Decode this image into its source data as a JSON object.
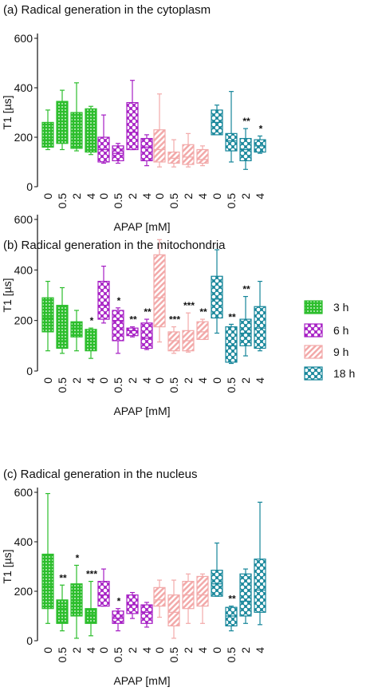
{
  "figure": {
    "legend": [
      {
        "label": "3 h",
        "color": "#2dbe2d",
        "pattern": "grid-dots"
      },
      {
        "label": "6 h",
        "color": "#a61fc4",
        "pattern": "crosshatch"
      },
      {
        "label": "9 h",
        "color": "#f2a9a9",
        "pattern": "diagonal"
      },
      {
        "label": "18 h",
        "color": "#16869a",
        "pattern": "crosshatch"
      }
    ]
  },
  "chart_data": [
    {
      "type": "box",
      "title": "(a) Radical generation in the cytoplasm",
      "ylabel": "T1 [µs]",
      "xlabel": "APAP [mM]",
      "ylim": [
        0,
        620
      ],
      "yticks": [
        0,
        200,
        400,
        600
      ],
      "x_ticks": [
        "0",
        "0.5",
        "2",
        "4"
      ],
      "groups": [
        {
          "name": "3 h",
          "boxes": [
            {
              "x": "0",
              "min": 150,
              "q1": 160,
              "median": 190,
              "q3": 260,
              "max": 310,
              "sig": ""
            },
            {
              "x": "0.5",
              "min": 150,
              "q1": 175,
              "median": 225,
              "q3": 345,
              "max": 390,
              "sig": ""
            },
            {
              "x": "2",
              "min": 145,
              "q1": 155,
              "median": 210,
              "q3": 300,
              "max": 420,
              "sig": ""
            },
            {
              "x": "4",
              "min": 130,
              "q1": 140,
              "median": 225,
              "q3": 315,
              "max": 325,
              "sig": ""
            }
          ]
        },
        {
          "name": "6 h",
          "boxes": [
            {
              "x": "0",
              "min": 95,
              "q1": 100,
              "median": 150,
              "q3": 200,
              "max": 290,
              "sig": ""
            },
            {
              "x": "0.5",
              "min": 95,
              "q1": 105,
              "median": 135,
              "q3": 165,
              "max": 175,
              "sig": ""
            },
            {
              "x": "2",
              "min": 150,
              "q1": 150,
              "median": 220,
              "q3": 340,
              "max": 430,
              "sig": ""
            },
            {
              "x": "4",
              "min": 85,
              "q1": 105,
              "median": 160,
              "q3": 195,
              "max": 210,
              "sig": ""
            }
          ]
        },
        {
          "name": "9 h",
          "boxes": [
            {
              "x": "0",
              "min": 80,
              "q1": 100,
              "median": 150,
              "q3": 230,
              "max": 375,
              "sig": ""
            },
            {
              "x": "0.5",
              "min": 80,
              "q1": 95,
              "median": 115,
              "q3": 140,
              "max": 190,
              "sig": ""
            },
            {
              "x": "2",
              "min": 80,
              "q1": 90,
              "median": 120,
              "q3": 170,
              "max": 215,
              "sig": ""
            },
            {
              "x": "4",
              "min": 85,
              "q1": 95,
              "median": 110,
              "q3": 150,
              "max": 165,
              "sig": ""
            }
          ]
        },
        {
          "name": "18 h",
          "boxes": [
            {
              "x": "0",
              "min": 210,
              "q1": 210,
              "median": 260,
              "q3": 310,
              "max": 330,
              "sig": ""
            },
            {
              "x": "0.5",
              "min": 100,
              "q1": 145,
              "median": 185,
              "q3": 215,
              "max": 385,
              "sig": ""
            },
            {
              "x": "2",
              "min": 70,
              "q1": 105,
              "median": 150,
              "q3": 195,
              "max": 235,
              "sig": "**"
            },
            {
              "x": "4",
              "min": 135,
              "q1": 140,
              "median": 165,
              "q3": 190,
              "max": 205,
              "sig": "*"
            }
          ]
        }
      ]
    },
    {
      "type": "box",
      "title": "(b) Radical generation in the mitochondria",
      "ylabel": "T1 [µs]",
      "xlabel": "APAP [mM]",
      "ylim": [
        0,
        620
      ],
      "yticks": [
        0,
        200,
        400,
        600
      ],
      "x_ticks": [
        "0",
        "0.5",
        "2",
        "4"
      ],
      "groups": [
        {
          "name": "3 h",
          "boxes": [
            {
              "x": "0",
              "min": 80,
              "q1": 155,
              "median": 210,
              "q3": 290,
              "max": 355,
              "sig": ""
            },
            {
              "x": "0.5",
              "min": 70,
              "q1": 90,
              "median": 120,
              "q3": 260,
              "max": 330,
              "sig": ""
            },
            {
              "x": "2",
              "min": 80,
              "q1": 135,
              "median": 170,
              "q3": 195,
              "max": 240,
              "sig": ""
            },
            {
              "x": "4",
              "min": 50,
              "q1": 80,
              "median": 105,
              "q3": 165,
              "max": 170,
              "sig": "*"
            }
          ]
        },
        {
          "name": "6 h",
          "boxes": [
            {
              "x": "0",
              "min": 190,
              "q1": 205,
              "median": 260,
              "q3": 355,
              "max": 415,
              "sig": ""
            },
            {
              "x": "0.5",
              "min": 70,
              "q1": 120,
              "median": 200,
              "q3": 240,
              "max": 250,
              "sig": "*"
            },
            {
              "x": "2",
              "min": 135,
              "q1": 140,
              "median": 160,
              "q3": 170,
              "max": 175,
              "sig": "**"
            },
            {
              "x": "4",
              "min": 85,
              "q1": 90,
              "median": 130,
              "q3": 190,
              "max": 205,
              "sig": "**"
            }
          ]
        },
        {
          "name": "9 h",
          "boxes": [
            {
              "x": "0",
              "min": 115,
              "q1": 175,
              "median": 290,
              "q3": 460,
              "max": 520,
              "sig": ""
            },
            {
              "x": "0.5",
              "min": 70,
              "q1": 80,
              "median": 120,
              "q3": 155,
              "max": 175,
              "sig": "***"
            },
            {
              "x": "2",
              "min": 75,
              "q1": 80,
              "median": 120,
              "q3": 160,
              "max": 230,
              "sig": "***"
            },
            {
              "x": "4",
              "min": 125,
              "q1": 125,
              "median": 155,
              "q3": 195,
              "max": 205,
              "sig": "**"
            }
          ]
        },
        {
          "name": "18 h",
          "boxes": [
            {
              "x": "0",
              "min": 150,
              "q1": 210,
              "median": 285,
              "q3": 375,
              "max": 480,
              "sig": ""
            },
            {
              "x": "0.5",
              "min": 30,
              "q1": 35,
              "median": 100,
              "q3": 175,
              "max": 185,
              "sig": "**"
            },
            {
              "x": "2",
              "min": 60,
              "q1": 100,
              "median": 150,
              "q3": 205,
              "max": 295,
              "sig": "**"
            },
            {
              "x": "4",
              "min": 80,
              "q1": 90,
              "median": 170,
              "q3": 255,
              "max": 355,
              "sig": ""
            }
          ]
        }
      ]
    },
    {
      "type": "box",
      "title": "(c) Radical generation in the nucleus",
      "ylabel": "T1 [µs]",
      "xlabel": "APAP [mM]",
      "ylim": [
        0,
        620
      ],
      "yticks": [
        0,
        200,
        400,
        600
      ],
      "x_ticks": [
        "0",
        "0.5",
        "2",
        "4"
      ],
      "groups": [
        {
          "name": "3 h",
          "boxes": [
            {
              "x": "0",
              "min": 70,
              "q1": 130,
              "median": 220,
              "q3": 350,
              "max": 595,
              "sig": ""
            },
            {
              "x": "0.5",
              "min": 40,
              "q1": 70,
              "median": 130,
              "q3": 165,
              "max": 225,
              "sig": "**"
            },
            {
              "x": "2",
              "min": 10,
              "q1": 100,
              "median": 155,
              "q3": 230,
              "max": 305,
              "sig": "*"
            },
            {
              "x": "4",
              "min": 20,
              "q1": 70,
              "median": 105,
              "q3": 130,
              "max": 240,
              "sig": "***"
            }
          ]
        },
        {
          "name": "6 h",
          "boxes": [
            {
              "x": "0",
              "min": 140,
              "q1": 140,
              "median": 185,
              "q3": 240,
              "max": 290,
              "sig": ""
            },
            {
              "x": "0.5",
              "min": 40,
              "q1": 70,
              "median": 90,
              "q3": 120,
              "max": 130,
              "sig": "*"
            },
            {
              "x": "2",
              "min": 90,
              "q1": 110,
              "median": 145,
              "q3": 185,
              "max": 195,
              "sig": ""
            },
            {
              "x": "4",
              "min": 55,
              "q1": 70,
              "median": 115,
              "q3": 145,
              "max": 155,
              "sig": ""
            }
          ]
        },
        {
          "name": "9 h",
          "boxes": [
            {
              "x": "0",
              "min": 95,
              "q1": 140,
              "median": 165,
              "q3": 215,
              "max": 245,
              "sig": ""
            },
            {
              "x": "0.5",
              "min": 10,
              "q1": 60,
              "median": 115,
              "q3": 185,
              "max": 245,
              "sig": ""
            },
            {
              "x": "2",
              "min": 70,
              "q1": 130,
              "median": 185,
              "q3": 240,
              "max": 270,
              "sig": ""
            },
            {
              "x": "4",
              "min": 70,
              "q1": 140,
              "median": 185,
              "q3": 260,
              "max": 270,
              "sig": ""
            }
          ]
        },
        {
          "name": "18 h",
          "boxes": [
            {
              "x": "0",
              "min": 180,
              "q1": 180,
              "median": 230,
              "q3": 285,
              "max": 395,
              "sig": ""
            },
            {
              "x": "0.5",
              "min": 40,
              "q1": 60,
              "median": 100,
              "q3": 135,
              "max": 140,
              "sig": "**"
            },
            {
              "x": "2",
              "min": 70,
              "q1": 100,
              "median": 160,
              "q3": 270,
              "max": 290,
              "sig": ""
            },
            {
              "x": "4",
              "min": 65,
              "q1": 115,
              "median": 205,
              "q3": 330,
              "max": 560,
              "sig": ""
            }
          ]
        }
      ]
    }
  ]
}
